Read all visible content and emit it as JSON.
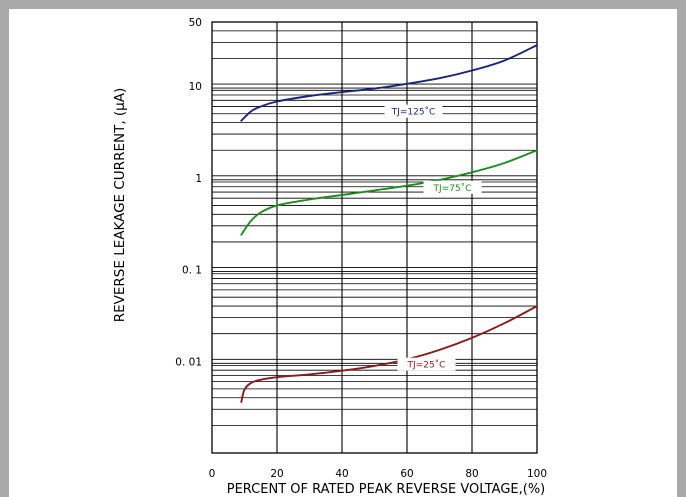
{
  "chart_data": {
    "type": "line",
    "xlabel": "PERCENT OF RATED PEAK REVERSE VOLTAGE,(%)",
    "ylabel": "REVERSE LEAKAGE CURRENT, (µA)",
    "xlim": [
      0,
      100
    ],
    "ylim": [
      0.001,
      50
    ],
    "y_scale": "log",
    "grid": true,
    "x_ticks": [
      "0",
      "20",
      "40",
      "60",
      "80",
      "100"
    ],
    "x_tick_values": [
      0,
      20,
      40,
      60,
      80,
      100
    ],
    "y_ticks": [
      "50",
      "10",
      "1",
      "0. 1",
      "0. 01"
    ],
    "y_tick_values": [
      50,
      10,
      1,
      0.1,
      0.01
    ],
    "series": [
      {
        "name": "TJ=125˚C",
        "color": "#1a237e",
        "x": [
          9,
          12,
          15,
          20,
          30,
          40,
          50,
          60,
          70,
          80,
          90,
          100
        ],
        "y": [
          4.2,
          5.3,
          6.0,
          6.8,
          7.8,
          8.6,
          9.4,
          10.6,
          12.2,
          14.8,
          19.0,
          28.0
        ]
      },
      {
        "name": "TJ=75˚C",
        "color": "#1e8c1e",
        "x": [
          9,
          12,
          15,
          20,
          30,
          40,
          50,
          60,
          70,
          80,
          90,
          100
        ],
        "y": [
          0.24,
          0.34,
          0.42,
          0.5,
          0.58,
          0.65,
          0.73,
          0.82,
          0.95,
          1.15,
          1.45,
          2.0
        ]
      },
      {
        "name": "TJ=25˚C",
        "color": "#8b1a1a",
        "x": [
          9,
          10,
          12,
          15,
          20,
          30,
          40,
          50,
          60,
          70,
          80,
          90,
          100
        ],
        "y": [
          0.0036,
          0.0049,
          0.0058,
          0.0063,
          0.0067,
          0.0072,
          0.0079,
          0.0089,
          0.0105,
          0.0133,
          0.018,
          0.026,
          0.04
        ]
      }
    ]
  }
}
